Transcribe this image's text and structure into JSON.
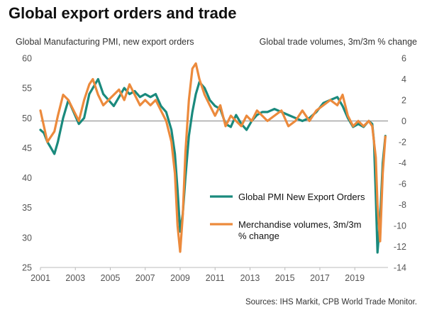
{
  "title": "Global export orders and trade",
  "subtitle_left": "Global Manufacturing PMI, new export orders",
  "subtitle_right": "Global trade volumes, 3m/3m % change",
  "source": "Sources: IHS Markit, CPB World Trade Monitor.",
  "colors": {
    "pmi": "#1a8a7d",
    "trade": "#ec8a3c",
    "zero_line": "#999999",
    "axis": "#bbbbbb"
  },
  "chart_data": {
    "type": "line",
    "title": "Global export orders and trade",
    "left_axis": {
      "label": "Global Manufacturing PMI, new export orders",
      "ylim": [
        25,
        60
      ],
      "ticks": [
        25,
        30,
        35,
        40,
        45,
        50,
        55,
        60
      ]
    },
    "right_axis": {
      "label": "Global trade volumes, 3m/3m % change",
      "ylim": [
        -14,
        6
      ],
      "ticks": [
        -14,
        -12,
        -10,
        -8,
        -6,
        -4,
        -2,
        0,
        2,
        4,
        6
      ]
    },
    "x_axis": {
      "range": [
        2001.0,
        2020.9
      ],
      "ticks": [
        2001,
        2003,
        2005,
        2007,
        2009,
        2011,
        2013,
        2015,
        2017,
        2019
      ]
    },
    "legend": {
      "placement": "lower-right",
      "entries": [
        "Global PMI New Export Orders",
        "Merchandise volumes, 3m/3m % change"
      ]
    },
    "series": [
      {
        "name": "Global PMI New Export Orders",
        "axis": "left",
        "x": [
          2001.0,
          2001.2,
          2001.4,
          2001.6,
          2001.8,
          2002.0,
          2002.3,
          2002.6,
          2002.9,
          2003.2,
          2003.5,
          2003.8,
          2004.0,
          2004.3,
          2004.6,
          2004.9,
          2005.2,
          2005.5,
          2005.8,
          2006.1,
          2006.4,
          2006.7,
          2007.0,
          2007.3,
          2007.6,
          2007.9,
          2008.2,
          2008.5,
          2008.7,
          2008.85,
          2009.0,
          2009.15,
          2009.3,
          2009.5,
          2009.7,
          2009.9,
          2010.1,
          2010.4,
          2010.7,
          2011.0,
          2011.3,
          2011.6,
          2011.9,
          2012.2,
          2012.5,
          2012.8,
          2013.1,
          2013.4,
          2013.7,
          2014.0,
          2014.4,
          2014.8,
          2015.2,
          2015.6,
          2016.0,
          2016.4,
          2016.8,
          2017.2,
          2017.6,
          2018.0,
          2018.3,
          2018.6,
          2018.9,
          2019.2,
          2019.5,
          2019.8,
          2020.0,
          2020.1,
          2020.2,
          2020.3,
          2020.45,
          2020.6,
          2020.75
        ],
        "y": [
          48.0,
          47.5,
          46.0,
          45.0,
          44.0,
          46.0,
          50.0,
          53.0,
          51.0,
          49.0,
          50.0,
          54.0,
          55.0,
          56.5,
          54.0,
          53.0,
          52.0,
          53.5,
          55.0,
          54.0,
          54.5,
          53.5,
          54.0,
          53.5,
          54.0,
          52.0,
          51.0,
          48.0,
          44.0,
          38.0,
          31.0,
          34.0,
          40.0,
          47.0,
          51.0,
          54.0,
          56.0,
          55.0,
          53.0,
          52.0,
          51.5,
          49.0,
          48.5,
          50.5,
          49.0,
          48.0,
          49.5,
          50.5,
          51.0,
          51.0,
          51.5,
          51.0,
          50.5,
          50.0,
          49.5,
          50.0,
          51.0,
          52.5,
          53.0,
          53.5,
          52.0,
          50.0,
          48.5,
          49.0,
          48.5,
          49.5,
          49.0,
          46.0,
          37.0,
          27.5,
          33.0,
          42.5,
          47.0
        ]
      },
      {
        "name": "Merchandise volumes, 3m/3m % change",
        "axis": "right",
        "x": [
          2001.0,
          2001.2,
          2001.4,
          2001.6,
          2001.8,
          2002.0,
          2002.3,
          2002.6,
          2002.9,
          2003.2,
          2003.5,
          2003.8,
          2004.0,
          2004.3,
          2004.6,
          2004.9,
          2005.2,
          2005.5,
          2005.8,
          2006.1,
          2006.4,
          2006.7,
          2007.0,
          2007.3,
          2007.6,
          2007.9,
          2008.2,
          2008.5,
          2008.7,
          2008.85,
          2009.0,
          2009.15,
          2009.3,
          2009.5,
          2009.7,
          2009.9,
          2010.1,
          2010.4,
          2010.7,
          2011.0,
          2011.3,
          2011.6,
          2011.9,
          2012.2,
          2012.5,
          2012.8,
          2013.1,
          2013.4,
          2013.7,
          2014.0,
          2014.4,
          2014.8,
          2015.2,
          2015.6,
          2016.0,
          2016.4,
          2016.8,
          2017.2,
          2017.6,
          2018.0,
          2018.3,
          2018.6,
          2018.9,
          2019.2,
          2019.5,
          2019.8,
          2020.0,
          2020.1,
          2020.2,
          2020.3,
          2020.45,
          2020.6,
          2020.75
        ],
        "y": [
          1.0,
          -0.5,
          -2.0,
          -1.5,
          -1.0,
          0.5,
          2.5,
          2.0,
          1.0,
          0.0,
          2.0,
          3.5,
          4.0,
          2.5,
          1.5,
          2.0,
          2.5,
          3.0,
          2.0,
          3.5,
          2.5,
          1.5,
          2.0,
          1.5,
          2.0,
          1.0,
          0.0,
          -2.0,
          -5.0,
          -10.0,
          -12.5,
          -9.0,
          -3.0,
          2.0,
          5.0,
          5.5,
          4.0,
          2.5,
          1.5,
          0.5,
          1.5,
          -0.5,
          0.5,
          0.0,
          -0.5,
          0.5,
          0.0,
          1.0,
          0.5,
          0.0,
          0.5,
          1.0,
          -0.5,
          0.0,
          1.0,
          0.0,
          1.0,
          1.5,
          2.0,
          1.5,
          2.5,
          0.5,
          -0.5,
          0.0,
          -0.5,
          0.0,
          -0.5,
          -2.0,
          -3.5,
          -8.0,
          -11.5,
          -5.0,
          -1.5
        ]
      }
    ]
  }
}
